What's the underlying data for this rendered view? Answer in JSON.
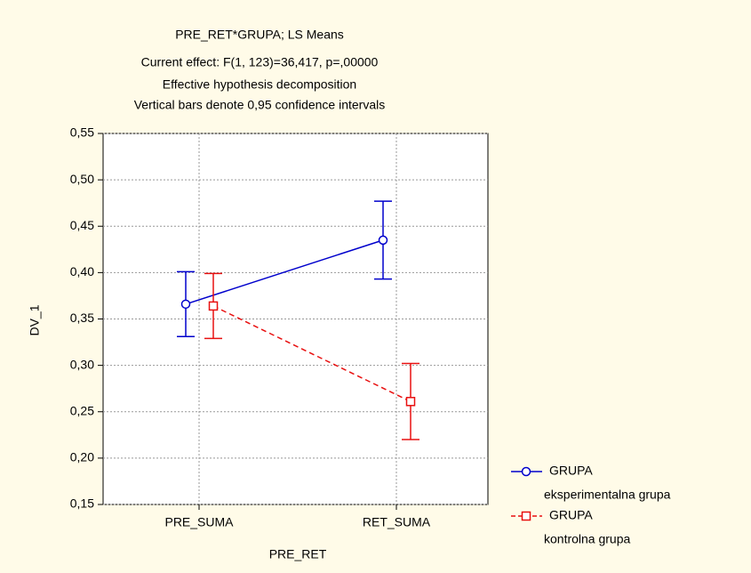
{
  "chart_data": {
    "type": "line",
    "title": "PRE_RET*GRUPA; LS Means",
    "subtitles": [
      "Current effect: F(1, 123)=36,417, p=,00000",
      "Effective hypothesis decomposition",
      "Vertical bars denote 0,95 confidence intervals"
    ],
    "x_label": "PRE_RET",
    "y_label": "DV_1",
    "categories": [
      "PRE_SUMA",
      "RET_SUMA"
    ],
    "series": [
      {
        "legend_prefix": "GRUPA",
        "name": "eksperimentalna grupa",
        "color": "#0000cc",
        "marker": "circle",
        "dashed": false,
        "values": [
          0.366,
          0.435
        ],
        "errors": [
          0.035,
          0.042
        ]
      },
      {
        "legend_prefix": "GRUPA",
        "name": "kontrolna grupa",
        "color": "#e81010",
        "marker": "square",
        "dashed": true,
        "values": [
          0.364,
          0.261
        ],
        "errors": [
          0.035,
          0.041
        ]
      }
    ],
    "ylim": [
      0.15,
      0.55
    ],
    "yticks": [
      {
        "value": 0.15,
        "label": "0,15"
      },
      {
        "value": 0.2,
        "label": "0,20"
      },
      {
        "value": 0.25,
        "label": "0,25"
      },
      {
        "value": 0.3,
        "label": "0,30"
      },
      {
        "value": 0.35,
        "label": "0,35"
      },
      {
        "value": 0.4,
        "label": "0,40"
      },
      {
        "value": 0.45,
        "label": "0,45"
      },
      {
        "value": 0.5,
        "label": "0,50"
      },
      {
        "value": 0.55,
        "label": "0,55"
      }
    ],
    "grid": true
  }
}
